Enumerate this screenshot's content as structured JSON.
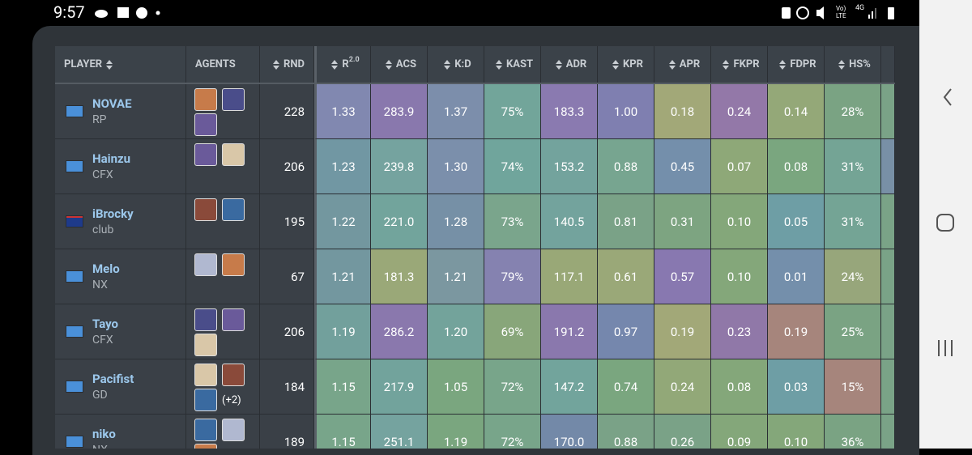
{
  "status_bar": {
    "time": "9:57",
    "volte": "Vo) LTE",
    "network": "4G"
  },
  "table": {
    "headers": [
      "PLAYER",
      "AGENTS",
      "RND",
      {
        "text": "R",
        "sup": "2.0"
      },
      "ACS",
      "K:D",
      "KAST",
      "ADR",
      "KPR",
      "APR",
      "FKPR",
      "FDPR",
      "HS%"
    ],
    "rows": [
      {
        "player": "NOVAE",
        "team": "RP",
        "rnd": "228",
        "stats": [
          "1.33",
          "283.9",
          "1.37",
          "75%",
          "183.3",
          "1.00",
          "0.18",
          "0.24",
          "0.14",
          "28%"
        ]
      },
      {
        "player": "Hainzu",
        "team": "CFX",
        "rnd": "206",
        "stats": [
          "1.23",
          "239.8",
          "1.30",
          "74%",
          "153.2",
          "0.88",
          "0.45",
          "0.07",
          "0.08",
          "31%"
        ]
      },
      {
        "player": "iBrocky",
        "team": "club",
        "rnd": "195",
        "stats": [
          "1.22",
          "221.0",
          "1.28",
          "73%",
          "140.5",
          "0.81",
          "0.31",
          "0.10",
          "0.05",
          "31%"
        ]
      },
      {
        "player": "Melo",
        "team": "NX",
        "rnd": "67",
        "stats": [
          "1.21",
          "181.3",
          "1.21",
          "79%",
          "117.1",
          "0.61",
          "0.57",
          "0.10",
          "0.01",
          "24%"
        ]
      },
      {
        "player": "Tayo",
        "team": "CFX",
        "rnd": "206",
        "stats": [
          "1.19",
          "286.2",
          "1.20",
          "69%",
          "191.2",
          "0.97",
          "0.19",
          "0.23",
          "0.19",
          "25%"
        ]
      },
      {
        "player": "Pacifist",
        "team": "GD",
        "rnd": "184",
        "agents_more": "(+2)",
        "stats": [
          "1.15",
          "217.9",
          "1.05",
          "72%",
          "147.2",
          "0.74",
          "0.24",
          "0.08",
          "0.03",
          "15%"
        ]
      },
      {
        "player": "niko",
        "team": "NX",
        "rnd": "189",
        "stats": [
          "1.15",
          "251.1",
          "1.19",
          "72%",
          "170.0",
          "0.88",
          "0.26",
          "0.09",
          "0.10",
          "36%"
        ]
      }
    ]
  }
}
